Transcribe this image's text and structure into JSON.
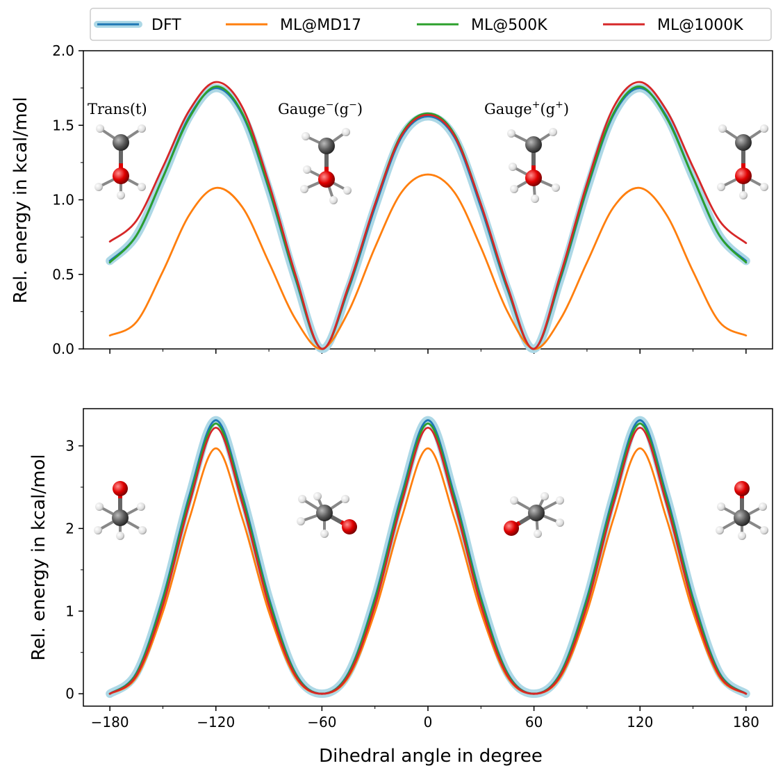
{
  "chart_data": [
    {
      "type": "line",
      "panel": "top",
      "xlabel": "",
      "ylabel": "Rel. energy in kcal/mol",
      "xlim": [
        -195,
        195
      ],
      "ylim": [
        0,
        2.0
      ],
      "yticks": [
        "0.0",
        "0.5",
        "1.0",
        "1.5",
        "2.0"
      ],
      "xticks_labeled": false,
      "grid": false,
      "annotations": [
        {
          "main": "Trans(t)",
          "sup1": "",
          "mid": "",
          "sup2": ""
        },
        {
          "main": "Gauge",
          "sup1": "−",
          "mid": "(g",
          "sup2": "−",
          "end": ")"
        },
        {
          "main": "Gauge",
          "sup1": "+",
          "mid": "(g",
          "sup2": "+",
          "end": ")"
        }
      ],
      "x": [
        -180,
        -165,
        -150,
        -135,
        -120,
        -105,
        -90,
        -75,
        -60,
        -45,
        -30,
        -15,
        0,
        15,
        30,
        45,
        60,
        75,
        90,
        105,
        120,
        135,
        150,
        165,
        180
      ],
      "series": [
        {
          "name": "DFT",
          "color": "#1f77b4",
          "values": [
            0.59,
            0.76,
            1.15,
            1.56,
            1.75,
            1.57,
            1.07,
            0.47,
            0.0,
            0.4,
            0.95,
            1.42,
            1.56,
            1.42,
            0.95,
            0.4,
            0.0,
            0.47,
            1.07,
            1.57,
            1.75,
            1.56,
            1.15,
            0.76,
            0.59
          ]
        },
        {
          "name": "ML@MD17",
          "color": "#ff7f0e",
          "values": [
            0.09,
            0.18,
            0.52,
            0.9,
            1.08,
            0.95,
            0.58,
            0.2,
            0.0,
            0.25,
            0.68,
            1.05,
            1.17,
            1.05,
            0.68,
            0.25,
            0.0,
            0.2,
            0.58,
            0.95,
            1.08,
            0.9,
            0.52,
            0.18,
            0.09
          ]
        },
        {
          "name": "ML@500K",
          "color": "#2ca02c",
          "values": [
            0.58,
            0.76,
            1.15,
            1.55,
            1.76,
            1.58,
            1.08,
            0.48,
            0.0,
            0.41,
            0.97,
            1.44,
            1.58,
            1.44,
            0.97,
            0.41,
            0.0,
            0.48,
            1.08,
            1.58,
            1.76,
            1.55,
            1.15,
            0.76,
            0.58
          ]
        },
        {
          "name": "ML@1000K",
          "color": "#d62728",
          "values": [
            0.72,
            0.86,
            1.22,
            1.6,
            1.79,
            1.62,
            1.11,
            0.5,
            0.0,
            0.42,
            0.97,
            1.43,
            1.57,
            1.43,
            0.97,
            0.42,
            0.0,
            0.5,
            1.11,
            1.62,
            1.79,
            1.6,
            1.22,
            0.86,
            0.71
          ]
        }
      ]
    },
    {
      "type": "line",
      "panel": "bottom",
      "xlabel": "Dihedral angle in degree",
      "ylabel": "Rel. energy in kcal/mol",
      "xlim": [
        -195,
        195
      ],
      "ylim": [
        -0.15,
        3.45
      ],
      "xticks": [
        "−180",
        "−120",
        "−60",
        "0",
        "60",
        "120",
        "180"
      ],
      "yticks": [
        "0",
        "1",
        "2",
        "3"
      ],
      "grid": false,
      "x": [
        -180,
        -165,
        -150,
        -135,
        -120,
        -105,
        -90,
        -75,
        -60,
        -45,
        -30,
        -15,
        0,
        15,
        30,
        45,
        60,
        75,
        90,
        105,
        120,
        135,
        150,
        165,
        180
      ],
      "series": [
        {
          "name": "DFT",
          "color": "#1f77b4",
          "values": [
            0.0,
            0.25,
            1.16,
            2.4,
            3.31,
            2.4,
            1.16,
            0.25,
            0.0,
            0.25,
            1.16,
            2.4,
            3.31,
            2.4,
            1.16,
            0.25,
            0.0,
            0.25,
            1.16,
            2.4,
            3.31,
            2.4,
            1.16,
            0.25,
            0.0
          ]
        },
        {
          "name": "ML@MD17",
          "color": "#ff7f0e",
          "values": [
            0.0,
            0.2,
            0.99,
            2.12,
            2.97,
            2.12,
            0.99,
            0.2,
            0.0,
            0.2,
            0.99,
            2.12,
            2.97,
            2.12,
            0.99,
            0.2,
            0.0,
            0.2,
            0.99,
            2.12,
            2.97,
            2.12,
            0.99,
            0.2,
            0.0
          ]
        },
        {
          "name": "ML@500K",
          "color": "#2ca02c",
          "values": [
            0.0,
            0.24,
            1.13,
            2.36,
            3.27,
            2.36,
            1.13,
            0.24,
            0.0,
            0.24,
            1.13,
            2.36,
            3.27,
            2.36,
            1.13,
            0.24,
            0.0,
            0.24,
            1.13,
            2.36,
            3.27,
            2.36,
            1.13,
            0.24,
            0.0
          ]
        },
        {
          "name": "ML@1000K",
          "color": "#d62728",
          "values": [
            0.0,
            0.22,
            1.07,
            2.3,
            3.22,
            2.3,
            1.07,
            0.22,
            0.0,
            0.22,
            1.07,
            2.3,
            3.22,
            2.3,
            1.07,
            0.22,
            0.0,
            0.22,
            1.07,
            2.3,
            3.22,
            2.3,
            1.07,
            0.22,
            0.0
          ]
        }
      ]
    }
  ],
  "legend": {
    "placement": "top",
    "entries": [
      "DFT",
      "ML@MD17",
      "ML@500K",
      "ML@1000K"
    ],
    "dft_halo_color": "#add8e6"
  },
  "molecule_colors": {
    "carbon": "#555555",
    "oxygen": "#e00000",
    "hydrogen": "#eeeeee"
  }
}
